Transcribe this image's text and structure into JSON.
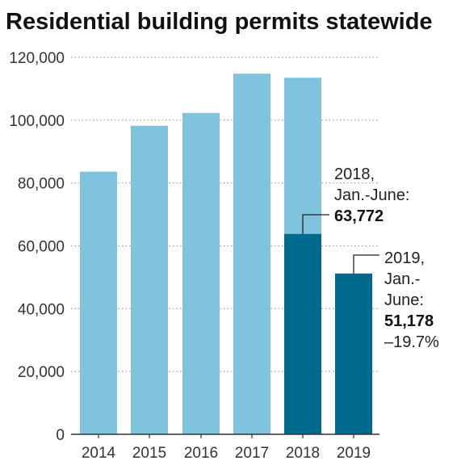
{
  "chart_data": {
    "type": "bar",
    "title": "Residential building permits statewide",
    "categories": [
      "2014",
      "2015",
      "2016",
      "2017",
      "2018",
      "2019"
    ],
    "series": [
      {
        "values": [
          83600,
          98200,
          102300,
          114800,
          113500,
          null
        ],
        "color": "#80c3df"
      },
      {
        "values": [
          null,
          null,
          null,
          null,
          63772,
          51178
        ],
        "color": "#006a8e"
      }
    ],
    "ylim": [
      0,
      120000
    ],
    "yticks": [
      "0",
      "20,000",
      "40,000",
      "60,000",
      "80,000",
      "100,000",
      "120,000"
    ],
    "grid": "horizontal-dotted",
    "annotations": [
      {
        "category": "2018",
        "value": 63772,
        "lines": [
          "2018,",
          "Jan.-June:"
        ],
        "bold": "63,772"
      },
      {
        "category": "2019",
        "value": 51178,
        "lines": [
          "2019,",
          "Jan.-",
          "June:"
        ],
        "bold": "51,178",
        "extra": "–19.7%"
      }
    ]
  }
}
